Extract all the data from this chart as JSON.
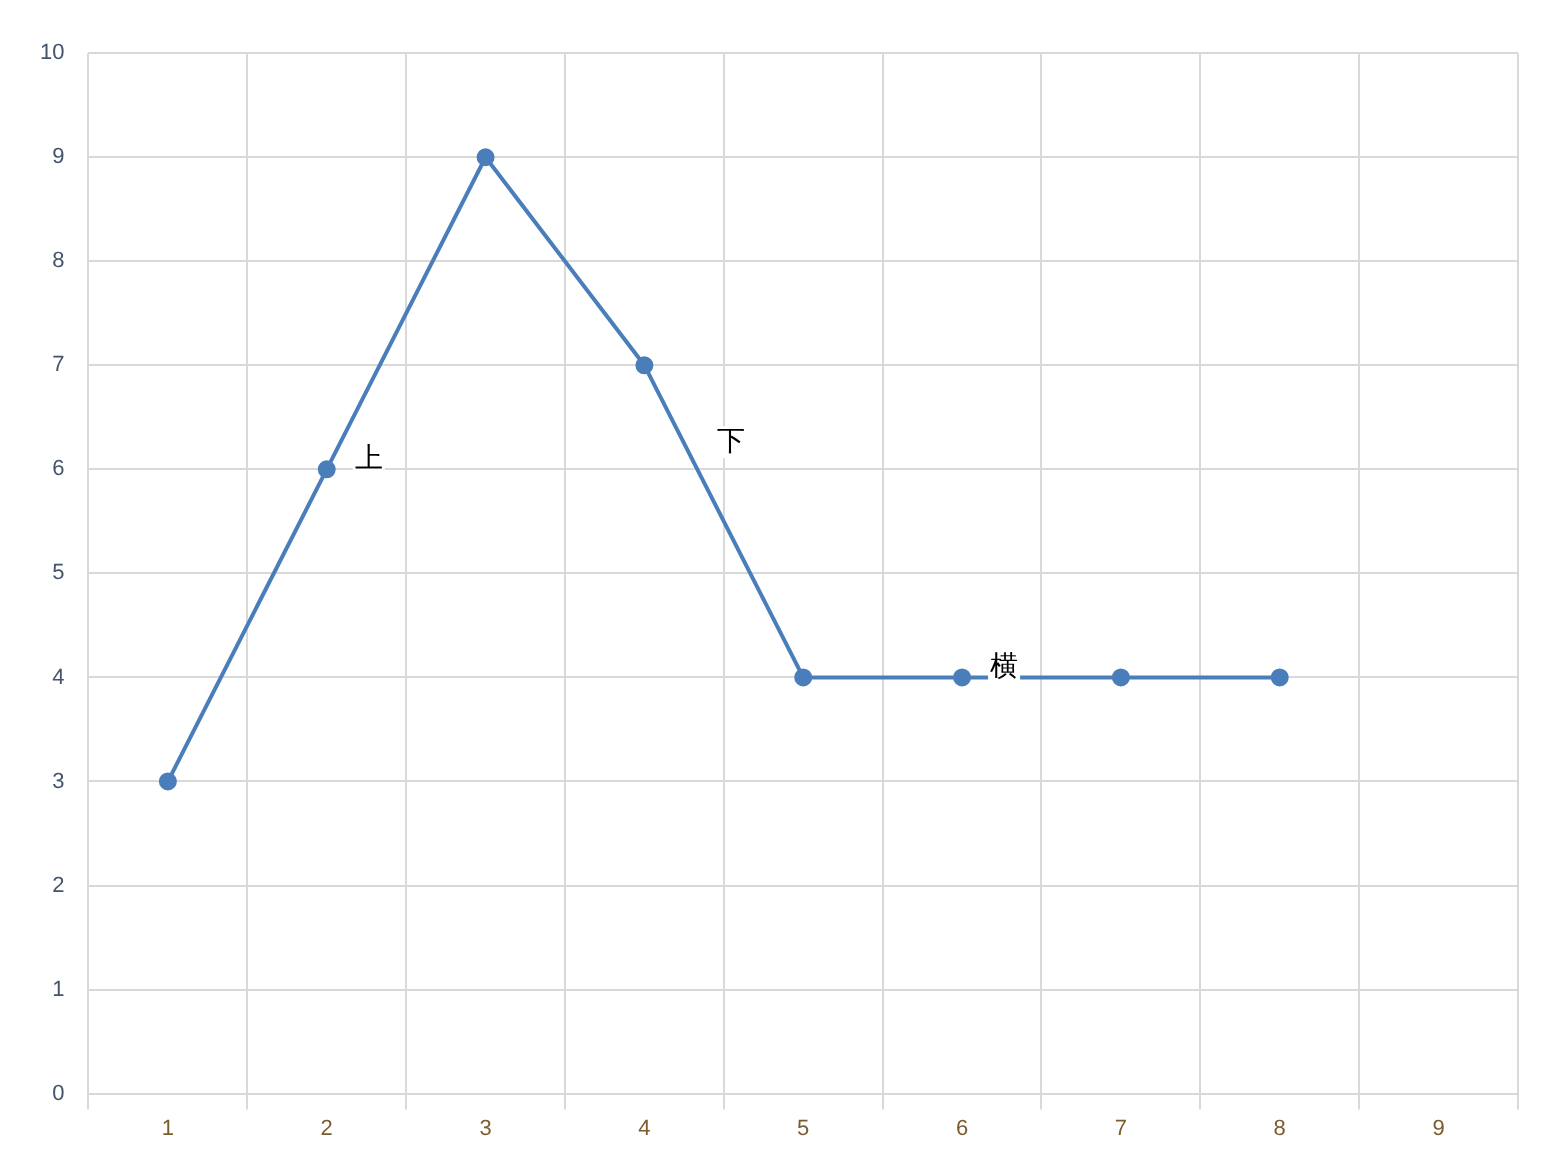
{
  "chart_data": {
    "type": "line",
    "categories": [
      "1",
      "2",
      "3",
      "4",
      "5",
      "6",
      "7",
      "8",
      "9"
    ],
    "series": [
      {
        "color": "#4a7ebb",
        "values": [
          3,
          6,
          9,
          7,
          4,
          4,
          4,
          4,
          null
        ]
      }
    ],
    "ylim": [
      0,
      10
    ],
    "yticks": [
      0,
      1,
      2,
      3,
      4,
      5,
      6,
      7,
      8,
      9,
      10
    ],
    "grid": true,
    "legend": false,
    "marker": "circle",
    "line_style": "solid",
    "annotations": [
      {
        "text": "上",
        "x": "2",
        "y": 6
      },
      "下",
      {
        "text": "横",
        "x": "6",
        "y": 4
      }
    ]
  }
}
